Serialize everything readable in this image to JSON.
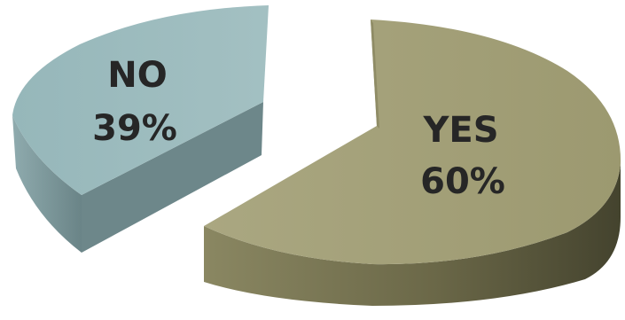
{
  "chart_data": {
    "type": "pie",
    "style": "3d-exploded",
    "title": "",
    "legend": "none",
    "slices": [
      {
        "label": "YES",
        "value": 60,
        "value_label": "60%",
        "color": "#a4a17a",
        "side_color": "#6e6b4c"
      },
      {
        "label": "NO",
        "value": 39,
        "value_label": "39%",
        "color": "#9bbabd",
        "side_color": "#6f8a8d"
      }
    ]
  }
}
